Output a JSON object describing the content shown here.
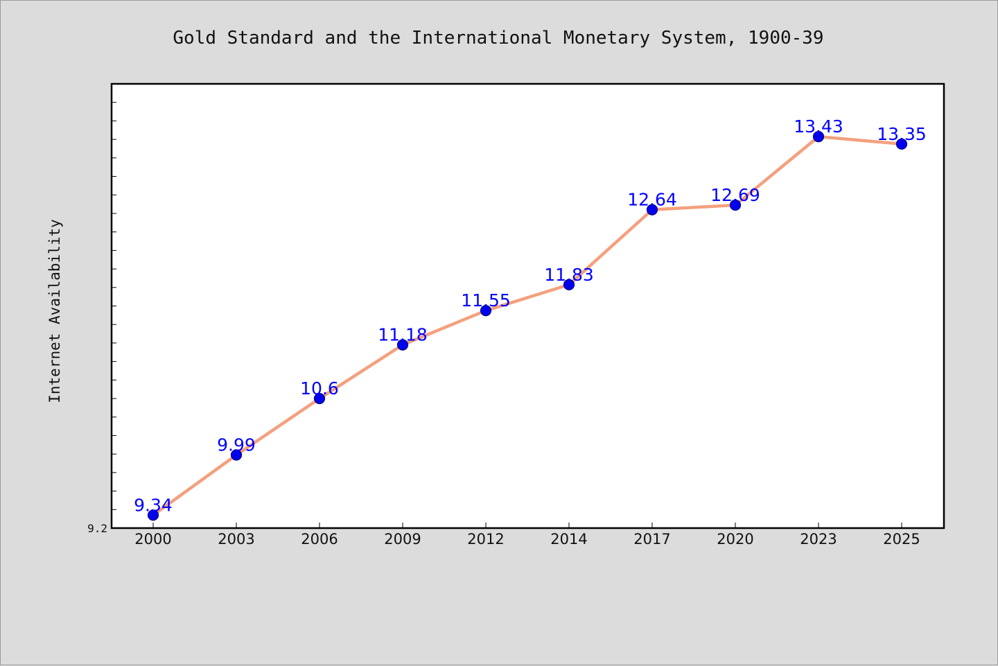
{
  "chart_data": {
    "type": "line",
    "title": "Gold Standard and the International Monetary System, 1900-39",
    "xlabel": "",
    "ylabel": "Internet Availability",
    "categories": [
      "2000",
      "2003",
      "2006",
      "2009",
      "2012",
      "2014",
      "2017",
      "2020",
      "2023",
      "2025"
    ],
    "series": [
      {
        "values": [
          9.34,
          9.99,
          10.6,
          11.18,
          11.55,
          11.83,
          12.64,
          12.69,
          13.43,
          13.35
        ],
        "labels": [
          "9.34",
          "9.99",
          "10.6",
          "11.18",
          "11.55",
          "11.83",
          "12.64",
          "12.69",
          "13.43",
          "13.35"
        ]
      }
    ],
    "ylim": [
      9.2,
      14.0
    ],
    "yticks": [
      {
        "value": 9.2,
        "label": "9.2"
      }
    ],
    "ytick_minor_step": 0.2,
    "grid": false,
    "colors": {
      "line": "#f4a07e",
      "marker": "#0000ee",
      "marker_edge": "#000080",
      "label": "#0000ff",
      "plot_background": "#ffffff",
      "figure_background": "#dcdcdc"
    }
  }
}
